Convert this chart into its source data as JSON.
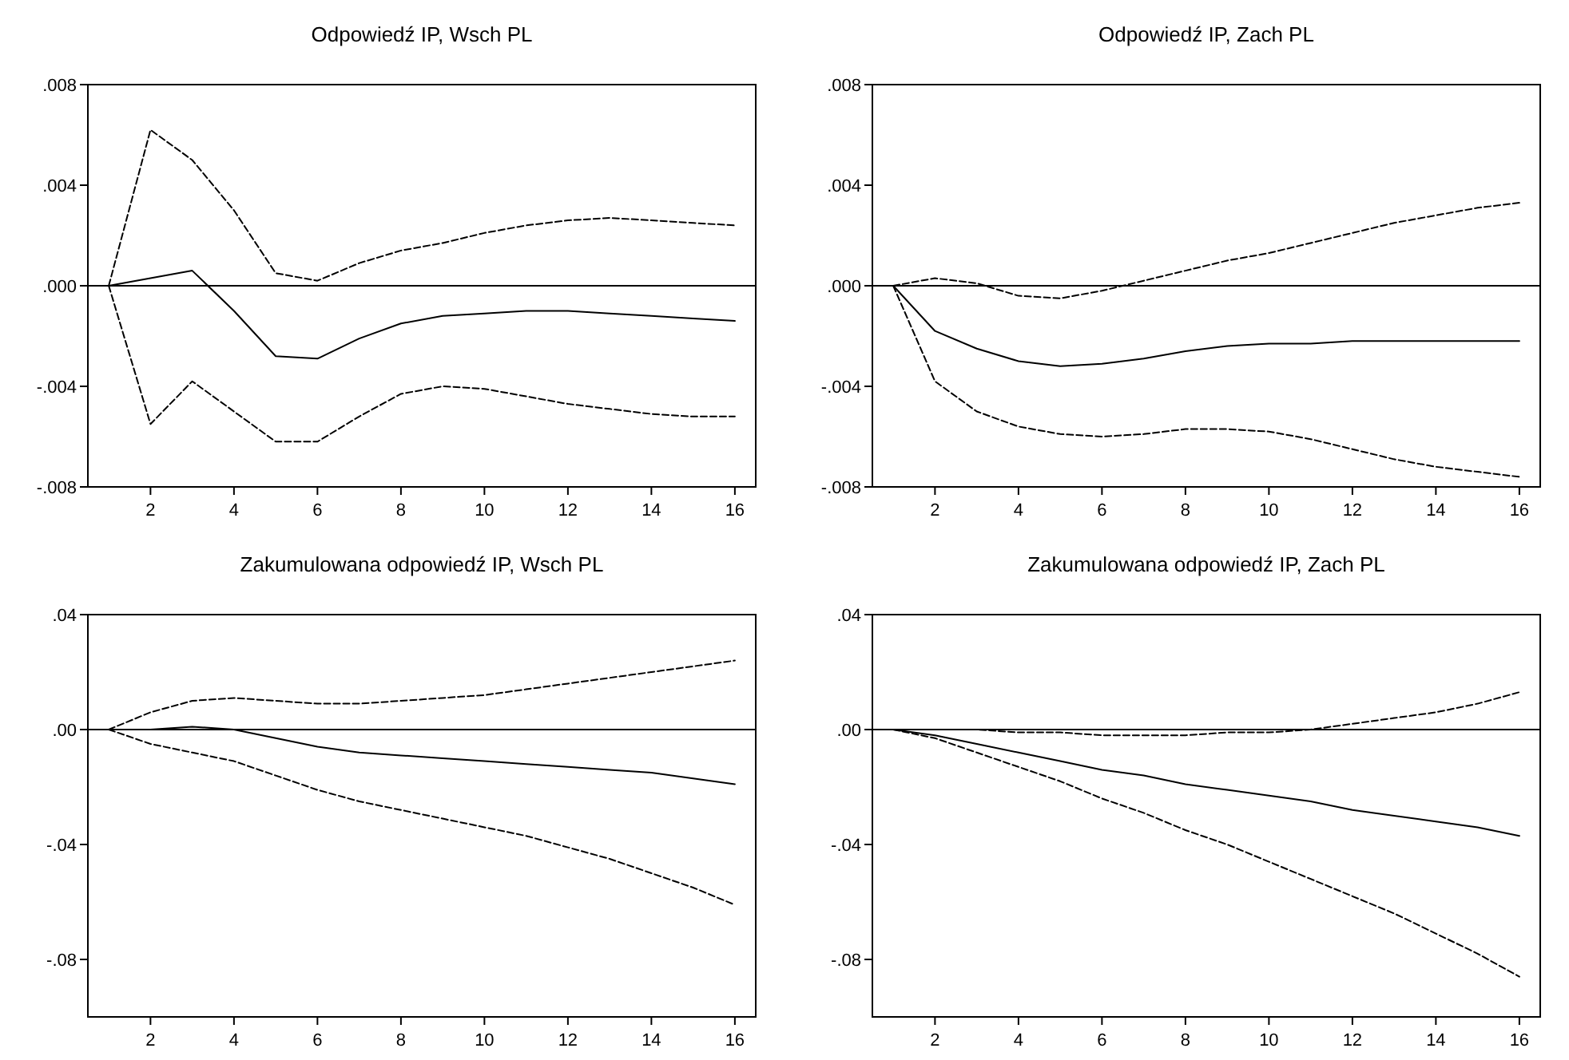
{
  "chart_data": [
    {
      "type": "line",
      "title": "Odpowiedź IP, Wsch PL",
      "x": [
        1,
        2,
        3,
        4,
        5,
        6,
        7,
        8,
        9,
        10,
        11,
        12,
        13,
        14,
        15,
        16
      ],
      "xlim": [
        0.5,
        16.5
      ],
      "xticks": [
        2,
        4,
        6,
        8,
        10,
        12,
        14,
        16
      ],
      "ylim": [
        -0.008,
        0.008
      ],
      "yticks": [
        {
          "value": 0.008,
          "label": ".008"
        },
        {
          "value": 0.004,
          "label": ".004"
        },
        {
          "value": 0,
          "label": ".000"
        },
        {
          "value": -0.004,
          "label": "-.004"
        },
        {
          "value": -0.008,
          "label": "-.008"
        }
      ],
      "grid": false,
      "ref_lines": [
        {
          "axis": "y",
          "value": 0,
          "color": "#000000",
          "line_style": "solid"
        }
      ],
      "series": [
        {
          "color": "#000000",
          "line_style": "solid",
          "values": [
            0,
            0.0003,
            0.0006,
            -0.001,
            -0.0028,
            -0.0029,
            -0.0021,
            -0.0015,
            -0.0012,
            -0.0011,
            -0.001,
            -0.001,
            -0.0011,
            -0.0012,
            -0.0013,
            -0.0014
          ]
        },
        {
          "color": "#000000",
          "line_style": "dashed",
          "values": [
            0,
            0.0062,
            0.005,
            0.003,
            0.0005,
            0.0002,
            0.0009,
            0.0014,
            0.0017,
            0.0021,
            0.0024,
            0.0026,
            0.0027,
            0.0026,
            0.0025,
            0.0024
          ]
        },
        {
          "color": "#000000",
          "line_style": "dashed",
          "values": [
            0,
            -0.0055,
            -0.0038,
            -0.005,
            -0.0062,
            -0.0062,
            -0.0052,
            -0.0043,
            -0.004,
            -0.0041,
            -0.0044,
            -0.0047,
            -0.0049,
            -0.0051,
            -0.0052,
            -0.0052
          ]
        }
      ]
    },
    {
      "type": "line",
      "title": "Odpowiedź IP, Zach PL",
      "x": [
        1,
        2,
        3,
        4,
        5,
        6,
        7,
        8,
        9,
        10,
        11,
        12,
        13,
        14,
        15,
        16
      ],
      "xlim": [
        0.5,
        16.5
      ],
      "xticks": [
        2,
        4,
        6,
        8,
        10,
        12,
        14,
        16
      ],
      "ylim": [
        -0.008,
        0.008
      ],
      "yticks": [
        {
          "value": 0.008,
          "label": ".008"
        },
        {
          "value": 0.004,
          "label": ".004"
        },
        {
          "value": 0,
          "label": ".000"
        },
        {
          "value": -0.004,
          "label": "-.004"
        },
        {
          "value": -0.008,
          "label": "-.008"
        }
      ],
      "grid": false,
      "ref_lines": [
        {
          "axis": "y",
          "value": 0,
          "color": "#000000",
          "line_style": "solid"
        }
      ],
      "series": [
        {
          "color": "#000000",
          "line_style": "solid",
          "values": [
            0,
            -0.0018,
            -0.0025,
            -0.003,
            -0.0032,
            -0.0031,
            -0.0029,
            -0.0026,
            -0.0024,
            -0.0023,
            -0.0023,
            -0.0022,
            -0.0022,
            -0.0022,
            -0.0022,
            -0.0022
          ]
        },
        {
          "color": "#000000",
          "line_style": "dashed",
          "values": [
            0,
            0.0003,
            0.0001,
            -0.0004,
            -0.0005,
            -0.0002,
            0.0002,
            0.0006,
            0.001,
            0.0013,
            0.0017,
            0.0021,
            0.0025,
            0.0028,
            0.0031,
            0.0033
          ]
        },
        {
          "color": "#000000",
          "line_style": "dashed",
          "values": [
            0,
            -0.0038,
            -0.005,
            -0.0056,
            -0.0059,
            -0.006,
            -0.0059,
            -0.0057,
            -0.0057,
            -0.0058,
            -0.0061,
            -0.0065,
            -0.0069,
            -0.0072,
            -0.0074,
            -0.0076
          ]
        }
      ]
    },
    {
      "type": "line",
      "title": "Zakumulowana odpowiedź IP, Wsch PL",
      "x": [
        1,
        2,
        3,
        4,
        5,
        6,
        7,
        8,
        9,
        10,
        11,
        12,
        13,
        14,
        15,
        16
      ],
      "xlim": [
        0.5,
        16.5
      ],
      "xticks": [
        2,
        4,
        6,
        8,
        10,
        12,
        14,
        16
      ],
      "ylim": [
        -0.1,
        0.04
      ],
      "yticks": [
        {
          "value": 0.04,
          "label": ".04"
        },
        {
          "value": 0,
          "label": ".00"
        },
        {
          "value": -0.04,
          "label": "-.04"
        },
        {
          "value": -0.08,
          "label": "-.08"
        }
      ],
      "grid": false,
      "ref_lines": [
        {
          "axis": "y",
          "value": 0,
          "color": "#000000",
          "line_style": "solid"
        }
      ],
      "series": [
        {
          "color": "#000000",
          "line_style": "solid",
          "values": [
            0,
            0,
            0.001,
            0,
            -0.003,
            -0.006,
            -0.008,
            -0.009,
            -0.01,
            -0.011,
            -0.012,
            -0.013,
            -0.014,
            -0.015,
            -0.017,
            -0.019
          ]
        },
        {
          "color": "#000000",
          "line_style": "dashed",
          "values": [
            0,
            0.006,
            0.01,
            0.011,
            0.01,
            0.009,
            0.009,
            0.01,
            0.011,
            0.012,
            0.014,
            0.016,
            0.018,
            0.02,
            0.022,
            0.024
          ]
        },
        {
          "color": "#000000",
          "line_style": "dashed",
          "values": [
            0,
            -0.005,
            -0.008,
            -0.011,
            -0.016,
            -0.021,
            -0.025,
            -0.028,
            -0.031,
            -0.034,
            -0.037,
            -0.041,
            -0.045,
            -0.05,
            -0.055,
            -0.061
          ]
        }
      ]
    },
    {
      "type": "line",
      "title": "Zakumulowana odpowiedź IP, Zach PL",
      "x": [
        1,
        2,
        3,
        4,
        5,
        6,
        7,
        8,
        9,
        10,
        11,
        12,
        13,
        14,
        15,
        16
      ],
      "xlim": [
        0.5,
        16.5
      ],
      "xticks": [
        2,
        4,
        6,
        8,
        10,
        12,
        14,
        16
      ],
      "ylim": [
        -0.1,
        0.04
      ],
      "yticks": [
        {
          "value": 0.04,
          "label": ".04"
        },
        {
          "value": 0,
          "label": ".00"
        },
        {
          "value": -0.04,
          "label": "-.04"
        },
        {
          "value": -0.08,
          "label": "-.08"
        }
      ],
      "grid": false,
      "ref_lines": [
        {
          "axis": "y",
          "value": 0,
          "color": "#000000",
          "line_style": "solid"
        }
      ],
      "series": [
        {
          "color": "#000000",
          "line_style": "solid",
          "values": [
            0,
            -0.002,
            -0.005,
            -0.008,
            -0.011,
            -0.014,
            -0.016,
            -0.019,
            -0.021,
            -0.023,
            -0.025,
            -0.028,
            -0.03,
            -0.032,
            -0.034,
            -0.037
          ]
        },
        {
          "color": "#000000",
          "line_style": "dashed",
          "values": [
            0,
            0,
            0,
            -0.001,
            -0.001,
            -0.002,
            -0.002,
            -0.002,
            -0.001,
            -0.001,
            0,
            0.002,
            0.004,
            0.006,
            0.009,
            0.013
          ]
        },
        {
          "color": "#000000",
          "line_style": "dashed",
          "values": [
            0,
            -0.003,
            -0.008,
            -0.013,
            -0.018,
            -0.024,
            -0.029,
            -0.035,
            -0.04,
            -0.046,
            -0.052,
            -0.058,
            -0.064,
            -0.071,
            -0.078,
            -0.086
          ]
        }
      ]
    }
  ]
}
